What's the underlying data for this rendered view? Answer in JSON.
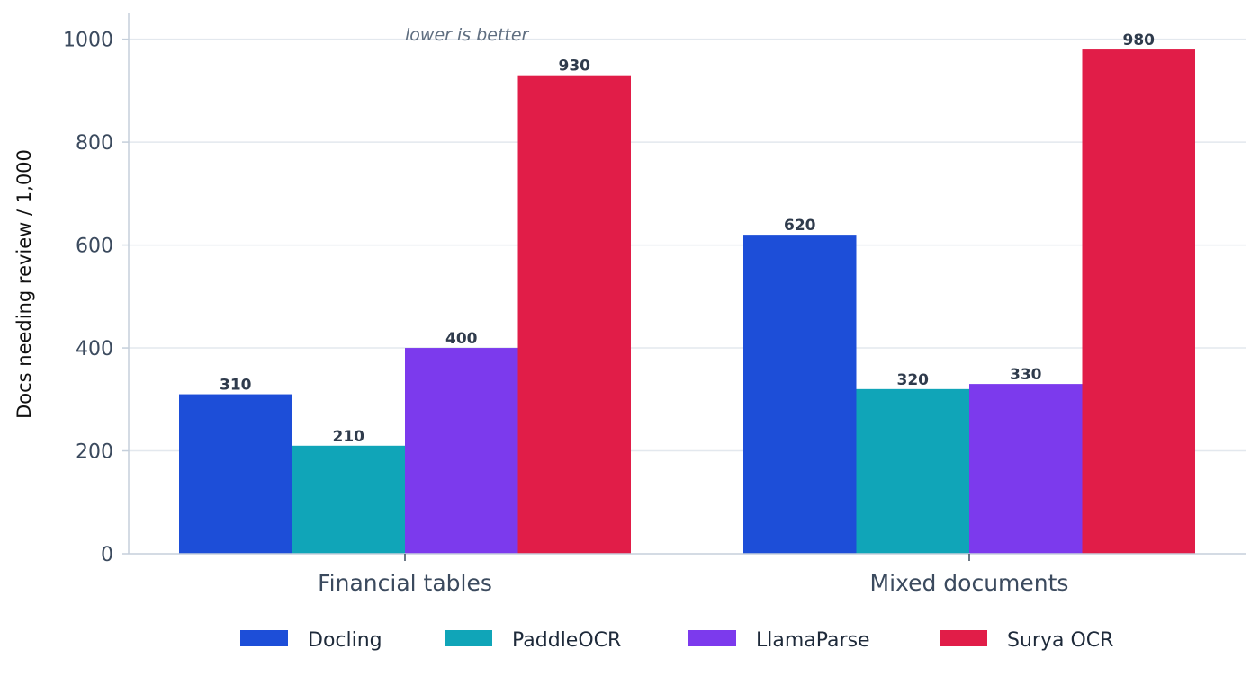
{
  "chart_data": {
    "type": "bar",
    "categories": [
      "Financial tables",
      "Mixed documents"
    ],
    "series": [
      {
        "name": "Docling",
        "values": [
          310,
          620
        ],
        "color": "#1d4ed8"
      },
      {
        "name": "PaddleOCR",
        "values": [
          210,
          320
        ],
        "color": "#10a5b8"
      },
      {
        "name": "LlamaParse",
        "values": [
          400,
          330
        ],
        "color": "#7c3aed"
      },
      {
        "name": "Surya OCR",
        "values": [
          930,
          980
        ],
        "color": "#e11d48"
      }
    ],
    "ylabel": "Docs needing review / 1,000",
    "ylim": [
      0,
      1050
    ],
    "yticks": [
      0,
      200,
      400,
      600,
      800,
      1000
    ],
    "annotation": "lower is better",
    "grid": true,
    "legend_position": "bottom"
  }
}
